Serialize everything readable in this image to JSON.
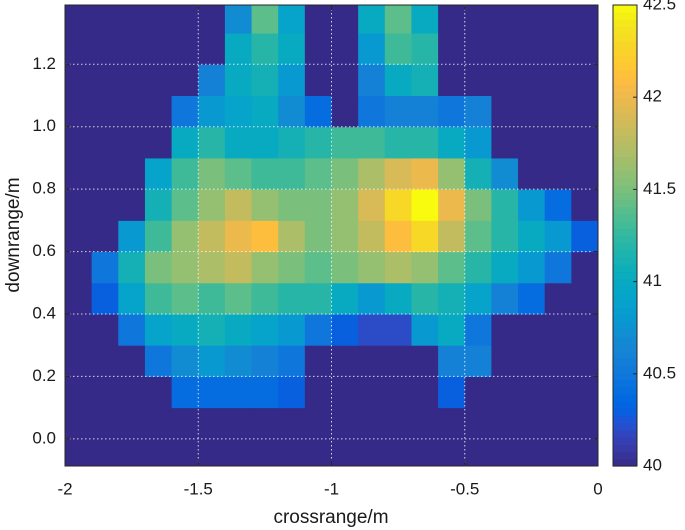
{
  "chart_data": {
    "type": "heatmap",
    "xlabel": "crossrange/m",
    "ylabel": "downrange/m",
    "xlim": [
      -2,
      0
    ],
    "ylim": [
      -0.087,
      1.39
    ],
    "xticks": [
      -2,
      -1.5,
      -1,
      -0.5,
      0
    ],
    "yticks": [
      {
        "value": 0,
        "label": "0.0"
      },
      0.2,
      0.4,
      0.6,
      0.8,
      {
        "value": 1,
        "label": "1.0"
      },
      1.2
    ],
    "grid": true,
    "colormap": "parula",
    "clim": [
      40,
      42.5
    ],
    "cticks": [
      40,
      40.5,
      41,
      41.5,
      42,
      42.5
    ],
    "x": [
      -1.95,
      -1.85,
      -1.75,
      -1.65,
      -1.55,
      -1.45,
      -1.35,
      -1.25,
      -1.15,
      -1.05,
      -0.95,
      -0.85,
      -0.75,
      -0.65,
      -0.55,
      -0.45,
      -0.35,
      -0.25,
      -0.15,
      -0.05
    ],
    "y": [
      -0.05,
      0.05,
      0.15,
      0.25,
      0.35,
      0.45,
      0.55,
      0.65,
      0.75,
      0.85,
      0.95,
      1.05,
      1.15,
      1.25,
      1.35
    ],
    "z": [
      [
        40,
        40,
        40,
        40,
        40,
        40,
        40,
        40,
        40,
        40,
        40,
        40,
        40,
        40,
        40,
        40,
        40,
        40,
        40,
        40
      ],
      [
        40,
        40,
        40,
        40,
        40,
        40,
        40,
        40,
        40,
        40,
        40,
        40,
        40,
        40,
        40,
        40,
        40,
        40,
        40,
        40
      ],
      [
        40,
        40,
        40,
        40,
        40.4,
        40.4,
        40.4,
        40.4,
        40.3,
        40,
        40,
        40,
        40,
        40,
        40.3,
        40,
        40,
        40,
        40,
        40
      ],
      [
        40,
        40,
        40,
        40.5,
        40.7,
        40.8,
        40.7,
        40.6,
        40.5,
        40,
        40,
        40,
        40,
        40,
        40.6,
        40.6,
        40,
        40,
        40,
        40
      ],
      [
        40,
        40,
        40.5,
        40.9,
        41,
        41.1,
        41,
        40.9,
        40.8,
        40.5,
        40.3,
        40.2,
        40.2,
        40.8,
        41,
        40.5,
        40,
        40,
        40,
        40
      ],
      [
        40,
        40.3,
        40.9,
        41.3,
        41.4,
        41.3,
        41.4,
        41.3,
        41.2,
        41.2,
        41,
        40.8,
        41,
        41.2,
        41.1,
        40.9,
        40.6,
        40.4,
        40,
        40
      ],
      [
        40,
        40.5,
        41.1,
        41.5,
        41.6,
        41.7,
        41.8,
        41.6,
        41.5,
        41.4,
        41.5,
        41.6,
        41.7,
        41.6,
        41.4,
        41.2,
        41,
        40.8,
        40.5,
        40
      ],
      [
        40,
        40,
        40.8,
        41.3,
        41.6,
        41.8,
        42,
        42.1,
        41.7,
        41.5,
        41.6,
        41.8,
        42.1,
        42.3,
        41.8,
        41.4,
        41.2,
        41,
        40.8,
        40.3
      ],
      [
        40,
        40,
        40,
        41.1,
        41.4,
        41.6,
        41.8,
        41.6,
        41.5,
        41.5,
        41.6,
        41.9,
        42.3,
        42.5,
        42,
        41.5,
        41.2,
        40.8,
        40.4,
        40
      ],
      [
        40,
        40,
        40,
        40.9,
        41.3,
        41.5,
        41.4,
        41.3,
        41.3,
        41.4,
        41.5,
        41.7,
        41.9,
        42,
        41.6,
        41.1,
        40.7,
        40,
        40,
        40
      ],
      [
        40,
        40,
        40,
        40,
        41,
        41.2,
        41,
        41,
        41.1,
        41.2,
        41.3,
        41.3,
        41.2,
        41.2,
        41,
        40.8,
        40,
        40,
        40,
        40
      ],
      [
        40,
        40,
        40,
        40,
        40.5,
        40.8,
        40.9,
        41,
        40.7,
        40.4,
        40,
        40.5,
        40.6,
        40.6,
        40.5,
        40.6,
        40,
        40,
        40,
        40
      ],
      [
        40,
        40,
        40,
        40,
        40,
        40.6,
        41,
        41.1,
        40.8,
        40,
        40,
        40.6,
        41,
        41.1,
        40,
        40,
        40,
        40,
        40,
        40
      ],
      [
        40,
        40,
        40,
        40,
        40,
        40,
        41,
        41.2,
        41,
        40,
        40,
        40.8,
        41.3,
        41.2,
        40,
        40,
        40,
        40,
        40,
        40
      ],
      [
        40,
        40,
        40,
        40,
        40,
        40,
        40.7,
        41.4,
        40.9,
        40,
        40,
        41,
        41.4,
        41,
        40,
        40,
        40,
        40,
        40,
        40
      ]
    ]
  }
}
